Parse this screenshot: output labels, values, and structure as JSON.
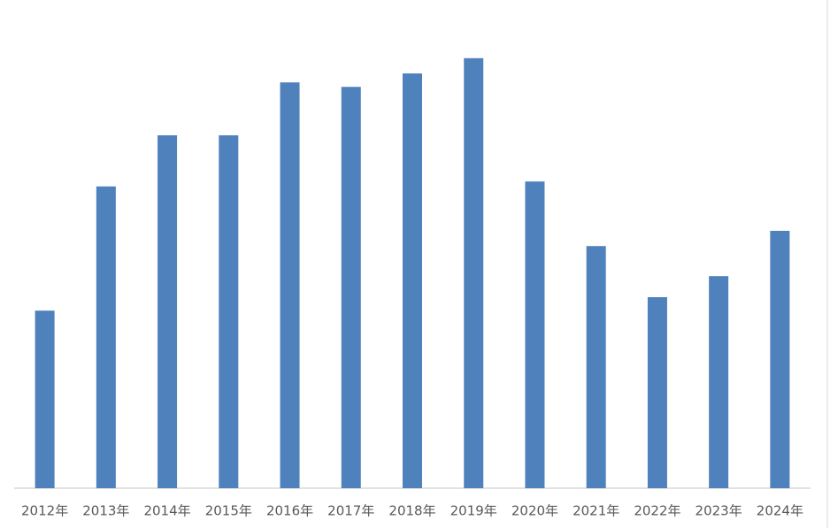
{
  "chart_data": {
    "type": "bar",
    "categories": [
      "2012年",
      "2013年",
      "2014年",
      "2015年",
      "2016年",
      "2017年",
      "2018年",
      "2019年",
      "2020年",
      "2021年",
      "2022年",
      "2023年",
      "2024年"
    ],
    "values": [
      39.6,
      67.3,
      78.7,
      78.7,
      90.5,
      89.5,
      92.5,
      95.9,
      68.4,
      54.0,
      42.6,
      47.3,
      57.4
    ],
    "color": "#4f81bd",
    "ylim": [
      0,
      100
    ]
  }
}
